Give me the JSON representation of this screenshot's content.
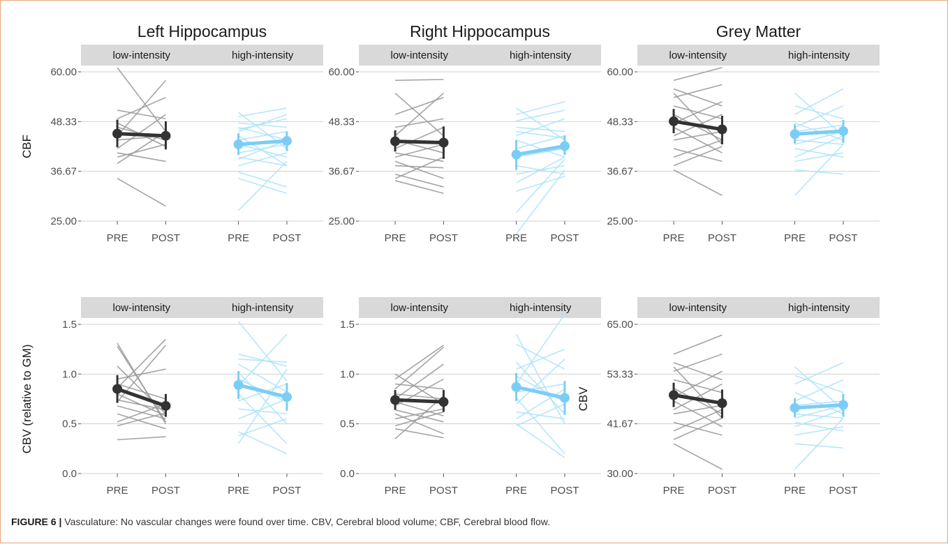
{
  "caption": {
    "label": "FIGURE 6 |",
    "text": "Vasculature: No vascular changes were found over time. CBV, Cerebral blood volume; CBF, Cerebral blood flow."
  },
  "colors": {
    "low": "#333333",
    "low_lines": "#9a9a9a",
    "high": "#7ccdf5",
    "high_lines": "#aee3fb",
    "strip": "#d9d9d9",
    "grid": "#d0d0d0"
  },
  "chart_data": [
    {
      "type": "line",
      "title": "Left Hippocampus",
      "ylabel": "CBF",
      "ylim": [
        25,
        60
      ],
      "yticks": [
        25,
        36.67,
        48.33,
        60
      ],
      "ytick_labels": [
        "25.00",
        "36.67",
        "48.33",
        "60.00"
      ],
      "facets": [
        "low-intensity",
        "high-intensity"
      ],
      "x": [
        "PRE",
        "POST"
      ],
      "series": [
        {
          "facet": "low-intensity",
          "kind": "mean",
          "pre": 45.5,
          "post": 45.0,
          "pre_err": [
            42.3,
            48.8
          ],
          "post_err": [
            41.8,
            48.4
          ]
        },
        {
          "facet": "high-intensity",
          "kind": "mean",
          "pre": 43.0,
          "post": 43.8,
          "pre_err": [
            40.5,
            45.6
          ],
          "post_err": [
            41.4,
            46.0
          ]
        },
        {
          "facet": "low-intensity",
          "kind": "subjects",
          "pairs": [
            [
              61,
              46
            ],
            [
              51,
              49
            ],
            [
              49,
              54
            ],
            [
              47,
              44
            ],
            [
              45,
              58
            ],
            [
              44,
              45
            ],
            [
              42,
              50
            ],
            [
              38.5,
              46
            ],
            [
              35,
              28.5
            ],
            [
              48,
              42.5
            ],
            [
              41,
              39
            ],
            [
              40,
              43
            ]
          ]
        },
        {
          "facet": "high-intensity",
          "kind": "subjects",
          "pairs": [
            [
              50.5,
              42
            ],
            [
              49.5,
              51.5
            ],
            [
              48,
              47
            ],
            [
              47,
              44
            ],
            [
              46,
              50
            ],
            [
              45,
              38
            ],
            [
              44,
              46
            ],
            [
              43,
              40
            ],
            [
              41,
              43
            ],
            [
              39.5,
              44
            ],
            [
              38,
              41
            ],
            [
              36.5,
              33
            ],
            [
              35,
              31.5
            ],
            [
              27.5,
              39
            ],
            [
              46.5,
              49
            ],
            [
              40,
              38
            ]
          ]
        }
      ]
    },
    {
      "type": "line",
      "title": "Right Hippocampus",
      "ylabel": "",
      "ylim": [
        25,
        60
      ],
      "yticks": [
        25,
        36.67,
        48.33,
        60
      ],
      "ytick_labels": [
        "25.00",
        "36.67",
        "48.33",
        "60.00"
      ],
      "facets": [
        "low-intensity",
        "high-intensity"
      ],
      "x": [
        "PRE",
        "POST"
      ],
      "series": [
        {
          "facet": "low-intensity",
          "kind": "mean",
          "pre": 43.7,
          "post": 43.4,
          "pre_err": [
            41.3,
            46.3
          ],
          "post_err": [
            39.6,
            47.2
          ]
        },
        {
          "facet": "high-intensity",
          "kind": "mean",
          "pre": 40.6,
          "post": 42.6,
          "pre_err": [
            37.0,
            44.0
          ],
          "post_err": [
            40.5,
            45.1
          ]
        },
        {
          "facet": "low-intensity",
          "kind": "subjects",
          "pairs": [
            [
              58,
              58.2
            ],
            [
              55,
              45
            ],
            [
              50,
              54
            ],
            [
              47,
              49
            ],
            [
              45,
              55
            ],
            [
              44,
              41
            ],
            [
              42,
              47
            ],
            [
              41,
              39
            ],
            [
              40,
              43
            ],
            [
              39,
              35
            ],
            [
              38,
              37.5
            ],
            [
              36,
              33
            ],
            [
              35,
              40
            ],
            [
              34.5,
              31.5
            ]
          ]
        },
        {
          "facet": "high-intensity",
          "kind": "subjects",
          "pairs": [
            [
              51.5,
              44
            ],
            [
              50,
              53
            ],
            [
              48.5,
              51
            ],
            [
              47,
              46
            ],
            [
              45,
              49
            ],
            [
              44,
              40
            ],
            [
              42,
              45
            ],
            [
              40,
              42
            ],
            [
              38,
              36
            ],
            [
              36,
              38
            ],
            [
              34,
              40
            ],
            [
              32,
              35.5
            ],
            [
              27,
              39.5
            ],
            [
              22,
              37
            ],
            [
              46,
              44.5
            ]
          ]
        }
      ]
    },
    {
      "type": "line",
      "title": "Grey Matter",
      "ylabel": "",
      "ylim": [
        25,
        60
      ],
      "yticks": [
        25,
        36.67,
        48.33,
        60
      ],
      "ytick_labels": [
        "25.00",
        "36.67",
        "48.33",
        "60.00"
      ],
      "facets": [
        "low-intensity",
        "high-intensity"
      ],
      "x": [
        "PRE",
        "POST"
      ],
      "series": [
        {
          "facet": "low-intensity",
          "kind": "mean",
          "pre": 48.4,
          "post": 46.5,
          "pre_err": [
            45.6,
            51.3
          ],
          "post_err": [
            43.0,
            49.7
          ]
        },
        {
          "facet": "high-intensity",
          "kind": "mean",
          "pre": 45.4,
          "post": 46.1,
          "pre_err": [
            43.2,
            47.7
          ],
          "post_err": [
            43.3,
            48.7
          ]
        },
        {
          "facet": "low-intensity",
          "kind": "subjects",
          "pairs": [
            [
              58,
              61
            ],
            [
              56,
              52
            ],
            [
              54,
              57
            ],
            [
              52,
              49
            ],
            [
              50,
              44
            ],
            [
              48,
              53
            ],
            [
              47,
              41
            ],
            [
              45,
              50
            ],
            [
              44,
              46
            ],
            [
              42,
              39
            ],
            [
              40,
              44
            ],
            [
              38,
              42.5
            ],
            [
              37,
              31
            ],
            [
              55,
              43
            ]
          ]
        },
        {
          "facet": "high-intensity",
          "kind": "subjects",
          "pairs": [
            [
              55,
              45
            ],
            [
              52,
              49
            ],
            [
              50,
              56
            ],
            [
              48,
              44
            ],
            [
              47,
              52
            ],
            [
              46,
              47.5
            ],
            [
              44,
              43
            ],
            [
              43,
              46
            ],
            [
              42,
              40
            ],
            [
              40,
              45
            ],
            [
              39,
              41
            ],
            [
              37,
              36
            ],
            [
              31,
              43
            ]
          ]
        }
      ]
    },
    {
      "type": "line",
      "title": "",
      "ylabel": "CBV (relative to GM)",
      "ylim": [
        0.0,
        1.5
      ],
      "yticks": [
        0.0,
        0.5,
        1.0,
        1.5
      ],
      "ytick_labels": [
        "0.0",
        "0.5",
        "1.0",
        "1.5"
      ],
      "facets": [
        "low-intensity",
        "high-intensity"
      ],
      "x": [
        "PRE",
        "POST"
      ],
      "series": [
        {
          "facet": "low-intensity",
          "kind": "mean",
          "pre": 0.85,
          "post": 0.68,
          "pre_err": [
            0.71,
            0.99
          ],
          "post_err": [
            0.57,
            0.8
          ]
        },
        {
          "facet": "high-intensity",
          "kind": "mean",
          "pre": 0.89,
          "post": 0.77,
          "pre_err": [
            0.75,
            1.03
          ],
          "post_err": [
            0.63,
            0.91
          ]
        },
        {
          "facet": "low-intensity",
          "kind": "subjects",
          "pairs": [
            [
              1.31,
              0.5
            ],
            [
              1.28,
              0.52
            ],
            [
              1.08,
              0.6
            ],
            [
              0.95,
              1.05
            ],
            [
              0.9,
              0.75
            ],
            [
              0.86,
              1.35
            ],
            [
              0.8,
              0.58
            ],
            [
              0.74,
              0.64
            ],
            [
              0.68,
              0.55
            ],
            [
              0.6,
              0.45
            ],
            [
              0.52,
              0.7
            ],
            [
              0.48,
              0.61
            ],
            [
              0.34,
              0.37
            ],
            [
              0.72,
              1.29
            ]
          ]
        },
        {
          "facet": "high-intensity",
          "kind": "subjects",
          "pairs": [
            [
              1.53,
              0.93
            ],
            [
              1.2,
              1.08
            ],
            [
              1.15,
              1.12
            ],
            [
              1.1,
              0.82
            ],
            [
              1.02,
              0.5
            ],
            [
              0.95,
              0.72
            ],
            [
              0.88,
              1.4
            ],
            [
              0.8,
              0.3
            ],
            [
              0.73,
              0.9
            ],
            [
              0.65,
              0.6
            ],
            [
              0.55,
              0.75
            ],
            [
              0.42,
              0.2
            ],
            [
              0.38,
              0.55
            ],
            [
              0.3,
              1.05
            ]
          ]
        }
      ]
    },
    {
      "type": "line",
      "title": "",
      "ylabel": "",
      "ylim": [
        0.0,
        1.5
      ],
      "yticks": [
        0.0,
        0.5,
        1.0,
        1.5
      ],
      "ytick_labels": [
        "0.0",
        "0.5",
        "1.0",
        "1.5"
      ],
      "facets": [
        "low-intensity",
        "high-intensity"
      ],
      "x": [
        "PRE",
        "POST"
      ],
      "series": [
        {
          "facet": "low-intensity",
          "kind": "mean",
          "pre": 0.74,
          "post": 0.72,
          "pre_err": [
            0.64,
            0.84
          ],
          "post_err": [
            0.62,
            0.84
          ]
        },
        {
          "facet": "high-intensity",
          "kind": "mean",
          "pre": 0.87,
          "post": 0.76,
          "pre_err": [
            0.73,
            1.01
          ],
          "post_err": [
            0.59,
            0.93
          ]
        },
        {
          "facet": "low-intensity",
          "kind": "subjects",
          "pairs": [
            [
              1.0,
              0.7
            ],
            [
              0.95,
              1.29
            ],
            [
              0.9,
              0.85
            ],
            [
              0.85,
              1.27
            ],
            [
              0.8,
              0.75
            ],
            [
              0.75,
              1.1
            ],
            [
              0.72,
              0.58
            ],
            [
              0.68,
              0.95
            ],
            [
              0.64,
              0.52
            ],
            [
              0.6,
              0.4
            ],
            [
              0.55,
              0.65
            ],
            [
              0.48,
              0.62
            ],
            [
              0.45,
              0.36
            ],
            [
              0.35,
              0.78
            ]
          ]
        },
        {
          "facet": "high-intensity",
          "kind": "subjects",
          "pairs": [
            [
              1.4,
              0.5
            ],
            [
              1.3,
              1.05
            ],
            [
              1.12,
              0.6
            ],
            [
              1.05,
              1.25
            ],
            [
              0.98,
              0.72
            ],
            [
              0.9,
              1.6
            ],
            [
              0.82,
              0.9
            ],
            [
              0.76,
              0.2
            ],
            [
              0.7,
              1.15
            ],
            [
              0.62,
              0.55
            ],
            [
              0.55,
              0.85
            ],
            [
              0.5,
              0.16
            ],
            [
              0.48,
              0.7
            ]
          ]
        }
      ]
    },
    {
      "type": "line",
      "title": "",
      "ylabel": "CBV",
      "ylim": [
        30,
        65
      ],
      "yticks": [
        30,
        41.67,
        53.33,
        65
      ],
      "ytick_labels": [
        "30.00",
        "41.67",
        "53.33",
        "65.00"
      ],
      "facets": [
        "low-intensity",
        "high-intensity"
      ],
      "x": [
        "PRE",
        "POST"
      ],
      "series": [
        {
          "facet": "low-intensity",
          "kind": "mean",
          "pre": 48.4,
          "post": 46.5,
          "pre_err": [
            45.6,
            51.3
          ],
          "post_err": [
            43.0,
            49.7
          ]
        },
        {
          "facet": "high-intensity",
          "kind": "mean",
          "pre": 45.4,
          "post": 46.1,
          "pre_err": [
            43.2,
            47.7
          ],
          "post_err": [
            43.3,
            48.7
          ]
        },
        {
          "facet": "low-intensity",
          "kind": "subjects",
          "pairs": [
            [
              58,
              62.5
            ],
            [
              56,
              52
            ],
            [
              54,
              58
            ],
            [
              52,
              49
            ],
            [
              50,
              44
            ],
            [
              48,
              54
            ],
            [
              47,
              41
            ],
            [
              45,
              51
            ],
            [
              44,
              46
            ],
            [
              42,
              39
            ],
            [
              40,
              45
            ],
            [
              38,
              43
            ],
            [
              37,
              31
            ],
            [
              55,
              43
            ]
          ]
        },
        {
          "facet": "high-intensity",
          "kind": "subjects",
          "pairs": [
            [
              55,
              45
            ],
            [
              53,
              49
            ],
            [
              51,
              56
            ],
            [
              49,
              44
            ],
            [
              47,
              52
            ],
            [
              46,
              47
            ],
            [
              44,
              43
            ],
            [
              43,
              46
            ],
            [
              42,
              40
            ],
            [
              41,
              45
            ],
            [
              39,
              41
            ],
            [
              37,
              36
            ],
            [
              31,
              43
            ]
          ]
        }
      ]
    }
  ]
}
